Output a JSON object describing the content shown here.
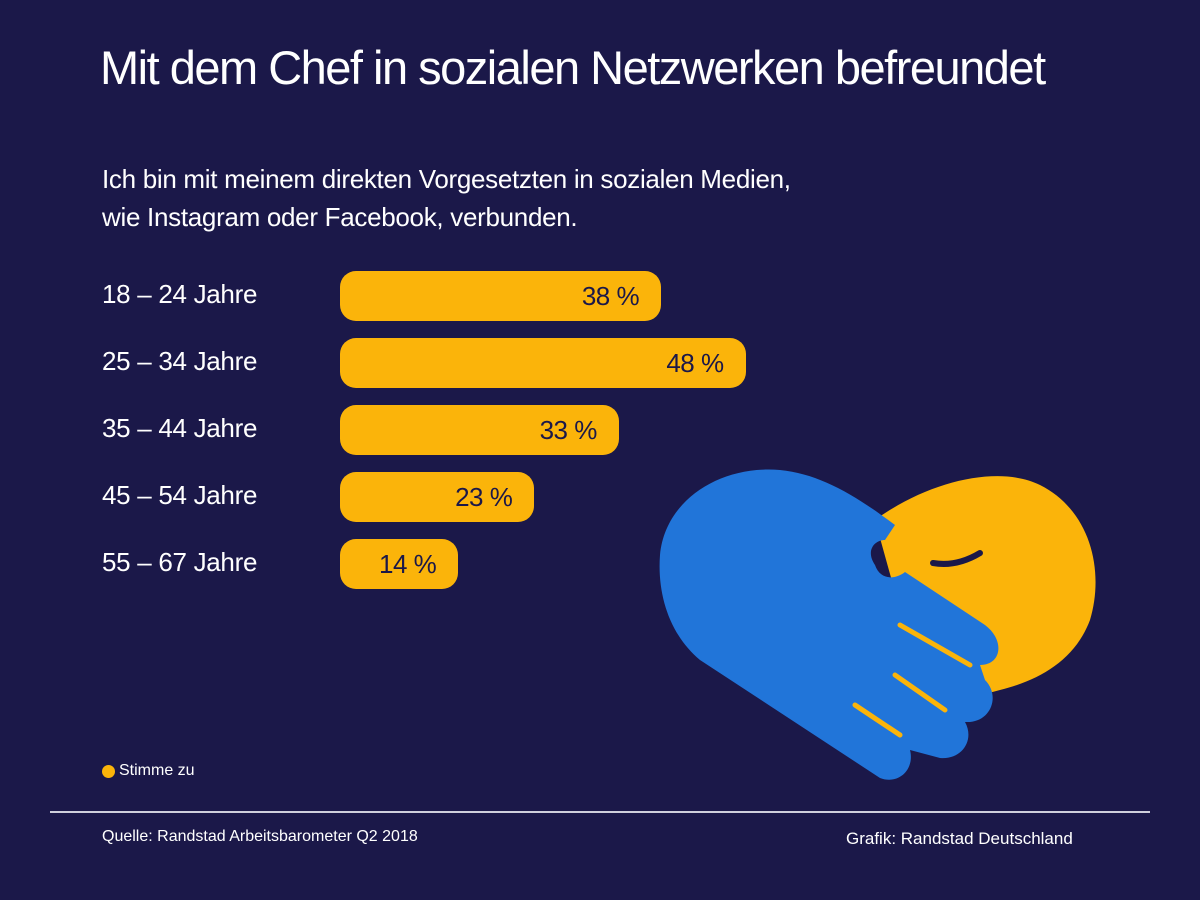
{
  "header": {
    "title": "Mit dem Chef in sozialen Netzwerken befreundet",
    "subtitle_lines": [
      "Ich bin mit meinem direkten Vorgesetzten in sozialen Medien,",
      "wie Instagram oder Facebook, verbunden."
    ]
  },
  "chart_data": {
    "type": "bar",
    "orientation": "horizontal",
    "title": "Mit dem Chef in sozialen Netzwerken befreundet",
    "subtitle": "Ich bin mit meinem direkten Vorgesetzten in sozialen Medien, wie Instagram oder Facebook, verbunden.",
    "categories": [
      "18 – 24 Jahre",
      "25 – 34 Jahre",
      "35 – 44 Jahre",
      "45 – 54 Jahre",
      "55 – 67 Jahre"
    ],
    "series": [
      {
        "name": "Stimme zu",
        "values": [
          38,
          48,
          33,
          23,
          14
        ],
        "color": "#fbb40a"
      }
    ],
    "value_labels": [
      "38 %",
      "48 %",
      "33 %",
      "23 %",
      "14 %"
    ],
    "xlabel": "",
    "ylabel": "",
    "unit": "%",
    "xlim": [
      0,
      100
    ],
    "grid": false,
    "legend": {
      "position": "bottom-left",
      "entries": [
        "Stimme zu"
      ]
    }
  },
  "legend": {
    "label": "Stimme zu",
    "color": "#fbb40a"
  },
  "footer": {
    "source": "Quelle: Randstad Arbeitsbarometer Q2 2018",
    "credit": "Grafik: Randstad Deutschland"
  },
  "colors": {
    "background": "#1b1849",
    "bar": "#fbb40a",
    "hand_blue": "#2175d9",
    "hand_yellow": "#fbb40a"
  }
}
